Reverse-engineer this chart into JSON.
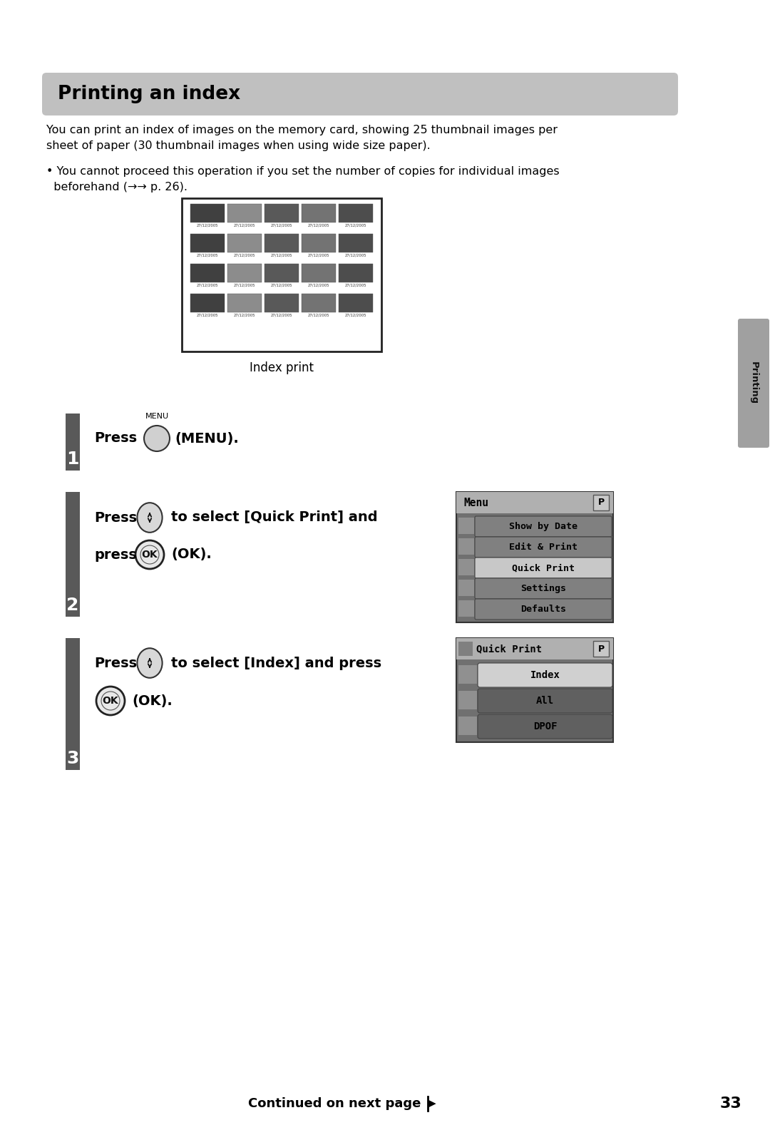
{
  "page_bg": "#ffffff",
  "title_text": "Printing an index",
  "title_bg": "#c0c0c0",
  "body_text_1": "You can print an index of images on the memory card, showing 25 thumbnail images per\nsheet of paper (30 thumbnail images when using wide size paper).",
  "body_text_2": "• You cannot proceed this operation if you set the number of copies for individual images\n  beforehand (␡␡ p. 26).",
  "index_print_caption": "Index print",
  "menu_title": "Menu",
  "menu_items": [
    "Show by Date",
    "Edit & Print",
    "Quick Print",
    "Settings",
    "Defaults"
  ],
  "menu_selected": 2,
  "qp_title": "Quick Print",
  "qp_items": [
    "Index",
    "All",
    "DPOF"
  ],
  "qp_selected": 0,
  "side_tab_text": "Printing",
  "footer_text": "Continued on next page",
  "footer_page": "33",
  "step_bg": "#595959",
  "menu_bg": "#808080",
  "menu_header_bg": "#a8a8a8",
  "menu_btn_dark": "#707070",
  "menu_btn_light": "#c8c8c8",
  "tab_bg": "#a0a0a0"
}
